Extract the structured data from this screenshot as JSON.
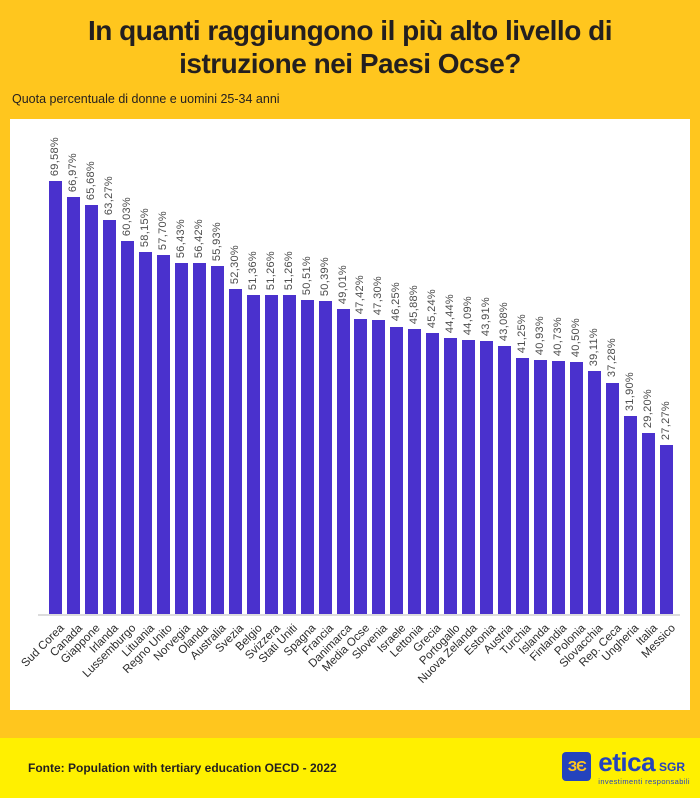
{
  "title": "In quanti raggiungono il più alto livello di istruzione nei Paesi Ocse?",
  "subtitle": "Quota percentuale di donne e uomini 25-34 anni",
  "footer": {
    "source": "Fonte: Population with tertiary education OECD - 2022",
    "logo": {
      "icon_glyph": "ЗЄ",
      "brand": "etica",
      "suffix": "SGR",
      "tagline": "investimenti responsabili"
    }
  },
  "colors": {
    "background_gold": "#FFC61E",
    "footer_yellow": "#FFF000",
    "bar_color": "#4A31CD",
    "panel_white": "#FFFFFF",
    "logo_blue": "#2443BD",
    "value_label_gray": "#4D4D4D",
    "title_black": "#231F20"
  },
  "chart_data": {
    "type": "bar",
    "title": "In quanti raggiungono il più alto livello di istruzione nei Paesi Ocse?",
    "subtitle": "Quota percentuale di donne e uomini 25-34 anni",
    "xlabel": "",
    "ylabel": "",
    "ylim": [
      0,
      70
    ],
    "grid": false,
    "legend": false,
    "value_labels_rotation": 90,
    "category_labels_rotation": 45,
    "categories": [
      "Sud Corea",
      "Canada",
      "Giappone",
      "Irlanda",
      "Lussemburgo",
      "Lituania",
      "Regno Unito",
      "Norvegia",
      "Olanda",
      "Australia",
      "Svezia",
      "Belgio",
      "Svizzera",
      "Stati Uniti",
      "Spagna",
      "Francia",
      "Danimarca",
      "Media Ocse",
      "Slovenia",
      "Israele",
      "Lettonia",
      "Grecia",
      "Portogallo",
      "Nuova Zelanda",
      "Estonia",
      "Austria",
      "Turchia",
      "Islanda",
      "Finlandia",
      "Polonia",
      "Slovacchia",
      "Rep. Ceca",
      "Ungheria",
      "Italia",
      "Messico"
    ],
    "values": [
      69.58,
      66.97,
      65.68,
      63.27,
      60.03,
      58.15,
      57.7,
      56.43,
      56.42,
      55.93,
      52.3,
      51.36,
      51.26,
      51.26,
      50.51,
      50.39,
      49.01,
      47.42,
      47.3,
      46.25,
      45.88,
      45.24,
      44.44,
      44.09,
      43.91,
      43.08,
      41.25,
      40.93,
      40.73,
      40.5,
      39.11,
      37.28,
      31.9,
      29.2,
      27.27
    ],
    "labels": [
      "69,58%",
      "66,97%",
      "65,68%",
      "63,27%",
      "60,03%",
      "58,15%",
      "57,70%",
      "56,43%",
      "56,42%",
      "55,93%",
      "52,30%",
      "51,36%",
      "51,26%",
      "51,26%",
      "50,51%",
      "50,39%",
      "49,01%",
      "47,42%",
      "47,30%",
      "46,25%",
      "45,88%",
      "45,24%",
      "44,44%",
      "44,09%",
      "43,91%",
      "43,08%",
      "41,25%",
      "40,93%",
      "40,73%",
      "40,50%",
      "39,11%",
      "37,28%",
      "31,90%",
      "29,20%",
      "27,27%"
    ]
  }
}
